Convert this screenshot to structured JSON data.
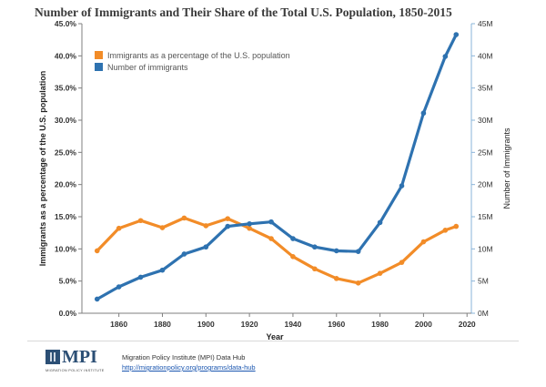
{
  "title": "Number of Immigrants and Their Share of the Total U.S. Population, 1850-2015",
  "footer": {
    "logo_text": "MPI",
    "logo_subtext": "MIGRATION POLICY INSTITUTE",
    "source": "Migration Policy Institute (MPI) Data Hub",
    "link": "http://migrationpolicy.org/programs/data-hub"
  },
  "colors": {
    "share": "#f28c28",
    "number": "#2e72b0",
    "axis": "#7f7f7f"
  },
  "chart_data": {
    "type": "line",
    "title": "Number of Immigrants and Their Share of the Total U.S. Population, 1850-2015",
    "xlabel": "Year",
    "ylabel_left": "Immigrants as a percentage of the U.S. population",
    "ylabel_right": "Number of Immigrants",
    "xlim": [
      1843,
      2022
    ],
    "ylim_left": [
      0,
      45
    ],
    "ylim_right": [
      0,
      45
    ],
    "x_ticks": [
      "1860",
      "1880",
      "1900",
      "1920",
      "1940",
      "1960",
      "1980",
      "2000",
      "2020"
    ],
    "y_left_ticks": [
      "0.0%",
      "5.0%",
      "10.0%",
      "15.0%",
      "20.0%",
      "25.0%",
      "30.0%",
      "35.0%",
      "40.0%",
      "45.0%"
    ],
    "y_right_ticks": [
      "0M",
      "5M",
      "10M",
      "15M",
      "20M",
      "25M",
      "30M",
      "35M",
      "40M",
      "45M"
    ],
    "grid": false,
    "legend_position": "top-left",
    "x": [
      1850,
      1860,
      1870,
      1880,
      1890,
      1900,
      1910,
      1920,
      1930,
      1940,
      1950,
      1960,
      1970,
      1980,
      1990,
      2000,
      2010,
      2015
    ],
    "series": [
      {
        "name": "Immigrants as a percentage of the U.S. population",
        "axis": "left",
        "unit": "%",
        "values": [
          9.7,
          13.2,
          14.4,
          13.3,
          14.8,
          13.6,
          14.7,
          13.2,
          11.6,
          8.8,
          6.9,
          5.4,
          4.7,
          6.2,
          7.9,
          11.1,
          12.9,
          13.5
        ]
      },
      {
        "name": "Number of immigrants",
        "axis": "right",
        "unit": "M",
        "values": [
          2.2,
          4.1,
          5.6,
          6.7,
          9.2,
          10.3,
          13.5,
          13.9,
          14.2,
          11.6,
          10.3,
          9.7,
          9.6,
          14.1,
          19.8,
          31.1,
          39.9,
          43.3
        ]
      }
    ]
  }
}
